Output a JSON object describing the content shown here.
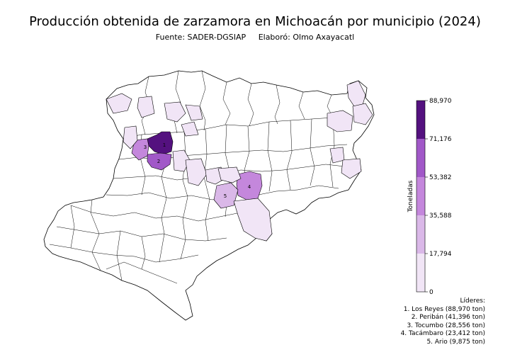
{
  "title": "Producción obtenida de zarzamora en Michoacán por municipio (2024)",
  "subtitle": {
    "source": "Fuente: SADER-DGSIAP",
    "author": "Elaboró: Olmo Axayacatl"
  },
  "colorbar": {
    "label": "Toneladas",
    "ticks": [
      "0",
      "17,794",
      "35,588",
      "53,382",
      "71,176",
      "88,970"
    ],
    "tick_values": [
      0,
      17794,
      35588,
      53382,
      71176,
      88970
    ],
    "colors": [
      "#f1e5f6",
      "#dab8e8",
      "#c487dc",
      "#a158c8",
      "#7f2cb3",
      "#54117f"
    ]
  },
  "leaders": {
    "header": "Líderes:",
    "items": [
      "1. Los Reyes (88,970 ton)",
      "2. Peribán (41,396 ton)",
      "3. Tocumbo (28,556 ton)",
      "4. Tacámbaro (23,412 ton)",
      "5. Ario (9,875 ton)"
    ]
  },
  "map_labels": [
    "1",
    "2",
    "3",
    "4",
    "5"
  ],
  "chart_data": {
    "type": "choropleth",
    "title": "Producción obtenida de zarzamora en Michoacán por municipio (2024)",
    "unit": "Toneladas",
    "vmin": 0,
    "vmax": 88970,
    "top_municipalities": [
      {
        "rank": 1,
        "name": "Los Reyes",
        "value": 88970
      },
      {
        "rank": 2,
        "name": "Peribán",
        "value": 41396
      },
      {
        "rank": 3,
        "name": "Tocumbo",
        "value": 28556
      },
      {
        "rank": 4,
        "name": "Tacámbaro",
        "value": 23412
      },
      {
        "rank": 5,
        "name": "Ario",
        "value": 9875
      }
    ]
  }
}
